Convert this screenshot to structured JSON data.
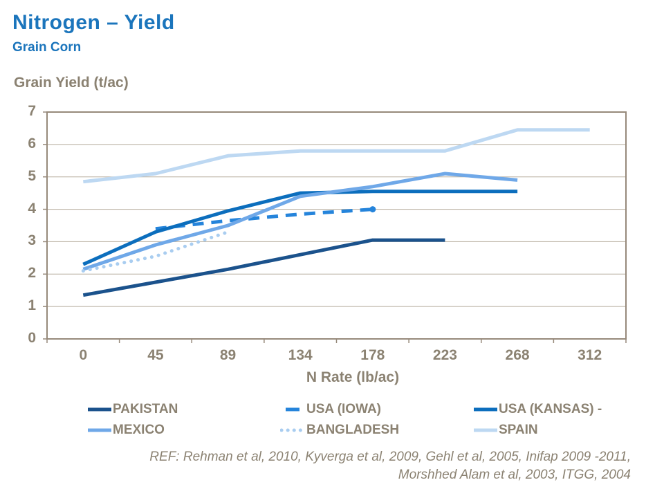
{
  "page": {
    "title": "Nitrogen – Yield",
    "subtitle": "Grain Corn"
  },
  "colors": {
    "title_blue": "#1B75BC",
    "text_gray": "#8B8272",
    "plot_border": "#96897A",
    "gridline": "#B5AB9B",
    "background": "#FFFFFF"
  },
  "chart": {
    "y_axis_title": "Grain Yield (t/ac)",
    "x_axis_title": "N Rate (lb/ac)",
    "ref_line1": "REF: Rehman et al, 2010, Kyverga et al, 2009, Gehl et al, 2005, Inifap 2009 -2011,",
    "ref_line2": "Morshhed Alam et al, 2003, ITGG, 2004"
  },
  "chart_data": {
    "type": "line",
    "title": "Nitrogen – Yield (Grain Corn)",
    "xlabel": "N Rate (lb/ac)",
    "ylabel": "Grain Yield (t/ac)",
    "categories": [
      0,
      45,
      89,
      134,
      178,
      223,
      268,
      312
    ],
    "x_tick_labels": [
      "0",
      "45",
      "89",
      "134",
      "178",
      "223",
      "268",
      "312"
    ],
    "y_ticks": [
      0,
      1,
      2,
      3,
      4,
      5,
      6,
      7
    ],
    "ylim": [
      0,
      7
    ],
    "grid": "horizontal",
    "legend_position": "bottom",
    "series": [
      {
        "name": "PAKISTAN",
        "color": "#1B528C",
        "style": "solid",
        "values": [
          1.35,
          1.75,
          2.15,
          2.6,
          3.05,
          3.05,
          null,
          null
        ]
      },
      {
        "name": "USA (IOWA)",
        "color": "#2584DB",
        "style": "dashed",
        "values": [
          null,
          3.4,
          3.65,
          3.85,
          4.0,
          null,
          null,
          null
        ],
        "end_dot": true
      },
      {
        "name": "USA (KANSAS) -",
        "color": "#0C6EBD",
        "style": "solid",
        "values": [
          2.3,
          3.3,
          3.95,
          4.5,
          4.55,
          4.55,
          4.55,
          null
        ]
      },
      {
        "name": "MEXICO",
        "color": "#6FA8E8",
        "style": "solid",
        "values": [
          2.15,
          2.9,
          3.5,
          4.4,
          4.7,
          5.1,
          4.9,
          null
        ]
      },
      {
        "name": "BANGLADESH",
        "color": "#A9CDF0",
        "style": "dotted",
        "values": [
          2.1,
          2.55,
          3.3,
          null,
          null,
          null,
          null,
          null
        ]
      },
      {
        "name": "SPAIN",
        "color": "#BDD8F2",
        "style": "solid",
        "values": [
          4.85,
          5.1,
          5.65,
          5.8,
          5.8,
          5.8,
          6.45,
          6.45
        ]
      }
    ]
  }
}
